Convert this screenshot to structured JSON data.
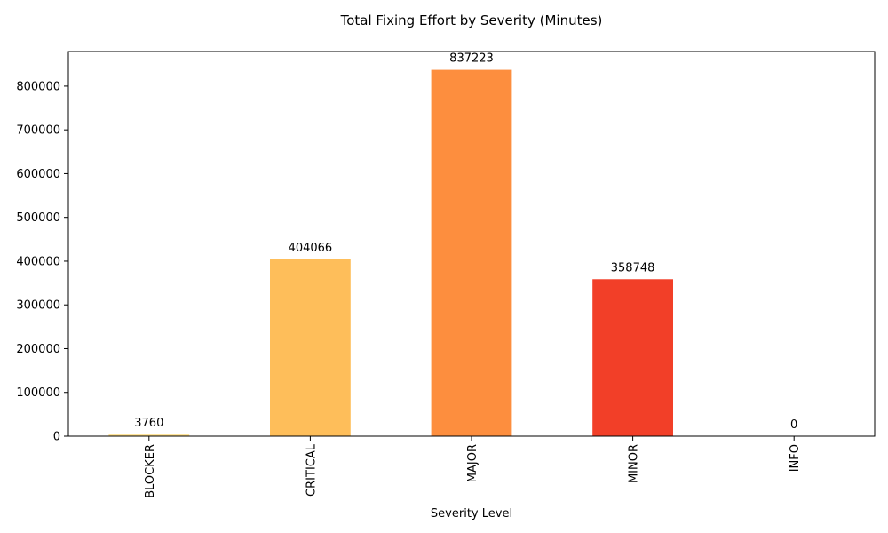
{
  "chart_data": {
    "type": "bar",
    "title": "Total Fixing Effort by Severity (Minutes)",
    "xlabel": "Severity Level",
    "ylabel": "",
    "categories": [
      "BLOCKER",
      "CRITICAL",
      "MAJOR",
      "MINOR",
      "INFO"
    ],
    "values": [
      3760,
      404066,
      837223,
      358748,
      0
    ],
    "data_labels": [
      "3760",
      "404066",
      "837223",
      "358748",
      "0"
    ],
    "colors": [
      "#ffe08a",
      "#febe5a",
      "#fd8e3e",
      "#f23f28",
      "#c1001c"
    ],
    "ylim": [
      0,
      879000
    ],
    "yticks": [
      0,
      100000,
      200000,
      300000,
      400000,
      500000,
      600000,
      700000,
      800000
    ],
    "ytick_labels": [
      "0",
      "100000",
      "200000",
      "300000",
      "400000",
      "500000",
      "600000",
      "700000",
      "800000"
    ],
    "grid": false,
    "legend": "none"
  }
}
